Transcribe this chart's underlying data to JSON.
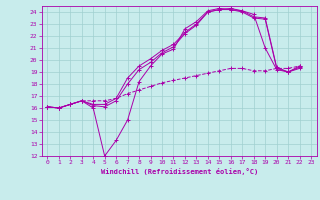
{
  "xlabel": "Windchill (Refroidissement éolien,°C)",
  "xlim": [
    -0.5,
    23.5
  ],
  "ylim": [
    12,
    24.5
  ],
  "yticks": [
    12,
    13,
    14,
    15,
    16,
    17,
    18,
    19,
    20,
    21,
    22,
    23,
    24
  ],
  "xticks": [
    0,
    1,
    2,
    3,
    4,
    5,
    6,
    7,
    8,
    9,
    10,
    11,
    12,
    13,
    14,
    15,
    16,
    17,
    18,
    19,
    20,
    21,
    22,
    23
  ],
  "bg_color": "#c8ecec",
  "grid_color": "#a0d0d0",
  "line_color": "#aa00aa",
  "lines": [
    {
      "x": [
        0,
        1,
        2,
        3,
        4,
        5,
        6,
        7,
        8,
        9,
        10,
        11,
        12,
        13,
        14,
        15,
        16,
        17,
        18,
        19,
        20,
        21,
        22
      ],
      "y": [
        16.1,
        16.0,
        16.3,
        16.6,
        16.0,
        12.0,
        13.3,
        15.0,
        18.2,
        19.5,
        20.5,
        20.9,
        22.6,
        23.2,
        24.1,
        24.3,
        24.2,
        24.1,
        23.8,
        21.0,
        19.2,
        19.0,
        19.5
      ],
      "style": "-",
      "marker": "+"
    },
    {
      "x": [
        0,
        1,
        2,
        3,
        4,
        5,
        6,
        7,
        8,
        9,
        10,
        11,
        12,
        13,
        14,
        15,
        16,
        17,
        18,
        19,
        20,
        21,
        22
      ],
      "y": [
        16.1,
        16.0,
        16.3,
        16.6,
        16.2,
        16.1,
        16.6,
        18.0,
        19.2,
        19.8,
        20.6,
        21.1,
        22.2,
        22.9,
        24.0,
        24.2,
        24.2,
        24.0,
        23.5,
        23.4,
        19.3,
        19.0,
        19.3
      ],
      "style": "-",
      "marker": "+"
    },
    {
      "x": [
        0,
        1,
        2,
        3,
        4,
        5,
        6,
        7,
        8,
        9,
        10,
        11,
        12,
        13,
        14,
        15,
        16,
        17,
        18,
        19,
        20,
        21,
        22
      ],
      "y": [
        16.1,
        16.0,
        16.3,
        16.6,
        16.3,
        16.3,
        16.8,
        18.5,
        19.5,
        20.1,
        20.8,
        21.3,
        22.3,
        23.0,
        24.0,
        24.2,
        24.3,
        24.1,
        23.6,
        23.5,
        19.4,
        19.0,
        19.4
      ],
      "style": "-",
      "marker": "+"
    },
    {
      "x": [
        0,
        1,
        2,
        3,
        4,
        5,
        6,
        7,
        8,
        9,
        10,
        11,
        12,
        13,
        14,
        15,
        16,
        17,
        18,
        19,
        20,
        21,
        22
      ],
      "y": [
        16.1,
        16.0,
        16.3,
        16.6,
        16.6,
        16.6,
        16.8,
        17.2,
        17.5,
        17.8,
        18.1,
        18.3,
        18.5,
        18.7,
        18.9,
        19.1,
        19.3,
        19.3,
        19.1,
        19.1,
        19.3,
        19.3,
        19.5
      ],
      "style": "--",
      "marker": "+"
    }
  ]
}
